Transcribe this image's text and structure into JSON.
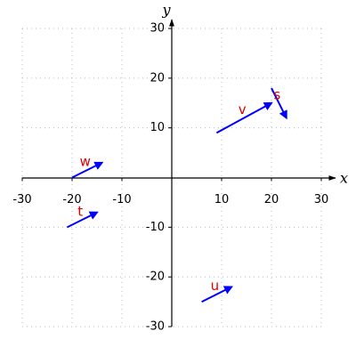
{
  "chart_data": {
    "type": "vector",
    "xlim": [
      -30,
      30
    ],
    "ylim": [
      -30,
      30
    ],
    "xticks": [
      -30,
      -20,
      -10,
      10,
      20,
      30
    ],
    "yticks": [
      -30,
      -20,
      -10,
      10,
      20,
      30
    ],
    "xlabel": "x",
    "ylabel": "y",
    "grid": true,
    "color": "#0000ff",
    "label_color": "#e00000",
    "vectors": [
      {
        "name": "v",
        "x0": 9,
        "y0": 9,
        "x1": 20,
        "y1": 15
      },
      {
        "name": "s",
        "x0": 20,
        "y0": 18,
        "x1": 23,
        "y1": 12
      },
      {
        "name": "w",
        "x0": -20,
        "y0": 0,
        "x1": -14,
        "y1": 3
      },
      {
        "name": "t",
        "x0": -21,
        "y0": -10,
        "x1": -15,
        "y1": -7
      },
      {
        "name": "u",
        "x0": 6,
        "y0": -25,
        "x1": 12,
        "y1": -22
      }
    ]
  }
}
